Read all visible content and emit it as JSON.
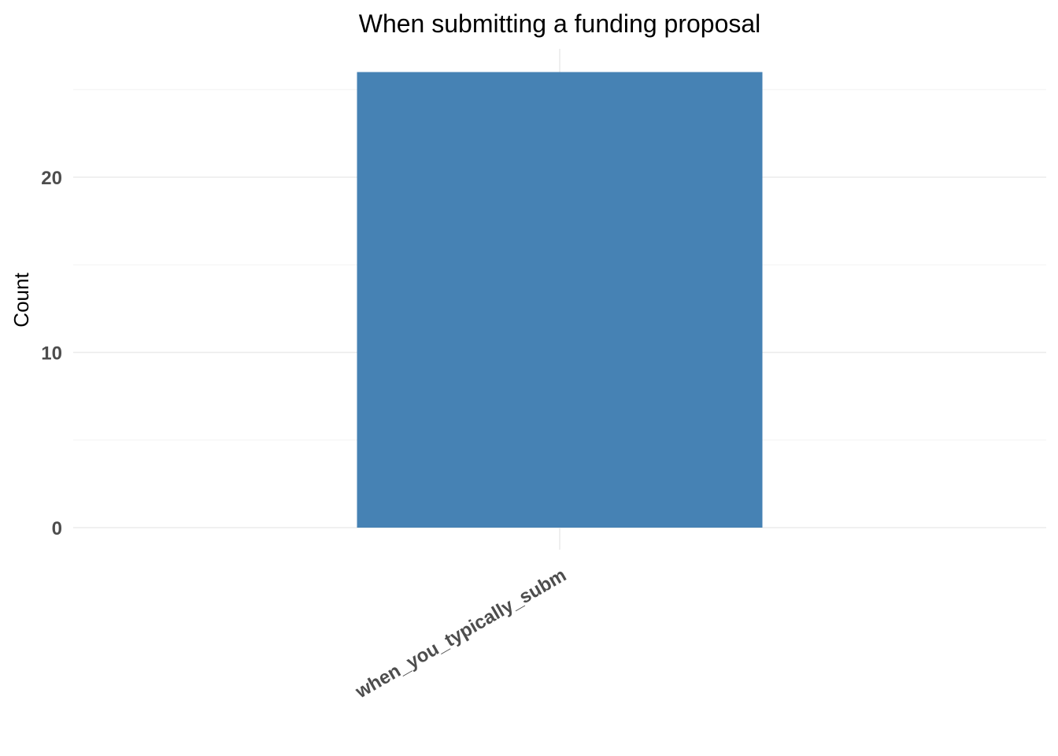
{
  "chart_data": {
    "type": "bar",
    "title": "When submitting a funding proposal",
    "xlabel": "",
    "ylabel": "Count",
    "categories": [
      "when_you_typically_subm"
    ],
    "values": [
      26
    ],
    "ylim": [
      0,
      26
    ],
    "y_ticks": [
      0,
      10,
      20
    ],
    "grid": true,
    "legend": "none",
    "colors": {
      "bar": "#4682B4",
      "grid": "#EBEBEB",
      "tick_text": "#4D4D4D"
    }
  }
}
